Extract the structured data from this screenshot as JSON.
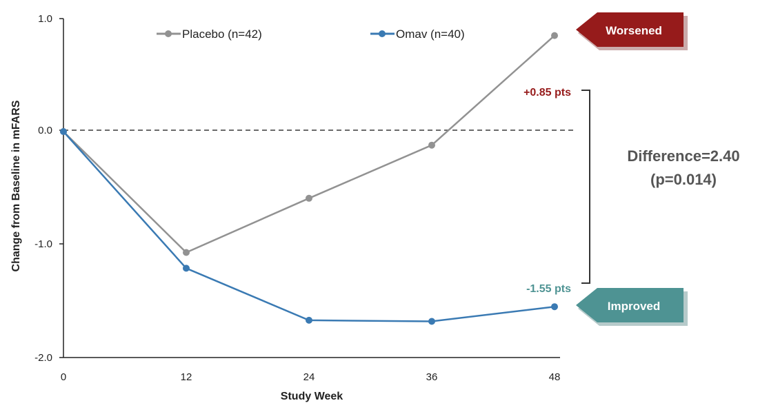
{
  "colors": {
    "placebo": "#929292",
    "omav": "#3a7ab3",
    "worsened": "#961b1b",
    "improved": "#4e9393",
    "baseline": "#555555"
  },
  "chart_data": {
    "type": "line",
    "x": [
      0,
      12,
      24,
      36,
      48
    ],
    "xlabel": "Study Week",
    "ylabel": "Change from Baseline in mFARS",
    "xlim": [
      0,
      48
    ],
    "ylim": [
      -2.0,
      1.0
    ],
    "x_ticks": [
      "0",
      "12",
      "24",
      "36",
      "48"
    ],
    "y_ticks": [
      "1.0",
      "0.0",
      "-1.0",
      "-2.0"
    ],
    "grid": false,
    "reference_line": 0.0,
    "legend_position": "top",
    "series": [
      {
        "name": "Placebo (n=42)",
        "values": [
          0.0,
          -1.07,
          -0.59,
          -0.12,
          0.85
        ],
        "color": "placebo"
      },
      {
        "name": "Omav (n=40)",
        "values": [
          0.0,
          -1.21,
          -1.67,
          -1.68,
          -1.55
        ],
        "color": "omav"
      }
    ],
    "annotations": {
      "placebo_end": "+0.85 pts",
      "omav_end": "-1.55 pts",
      "difference": "Difference=2.40",
      "p_value": "(p=0.014)",
      "worsened": "Worsened",
      "improved": "Improved"
    }
  }
}
